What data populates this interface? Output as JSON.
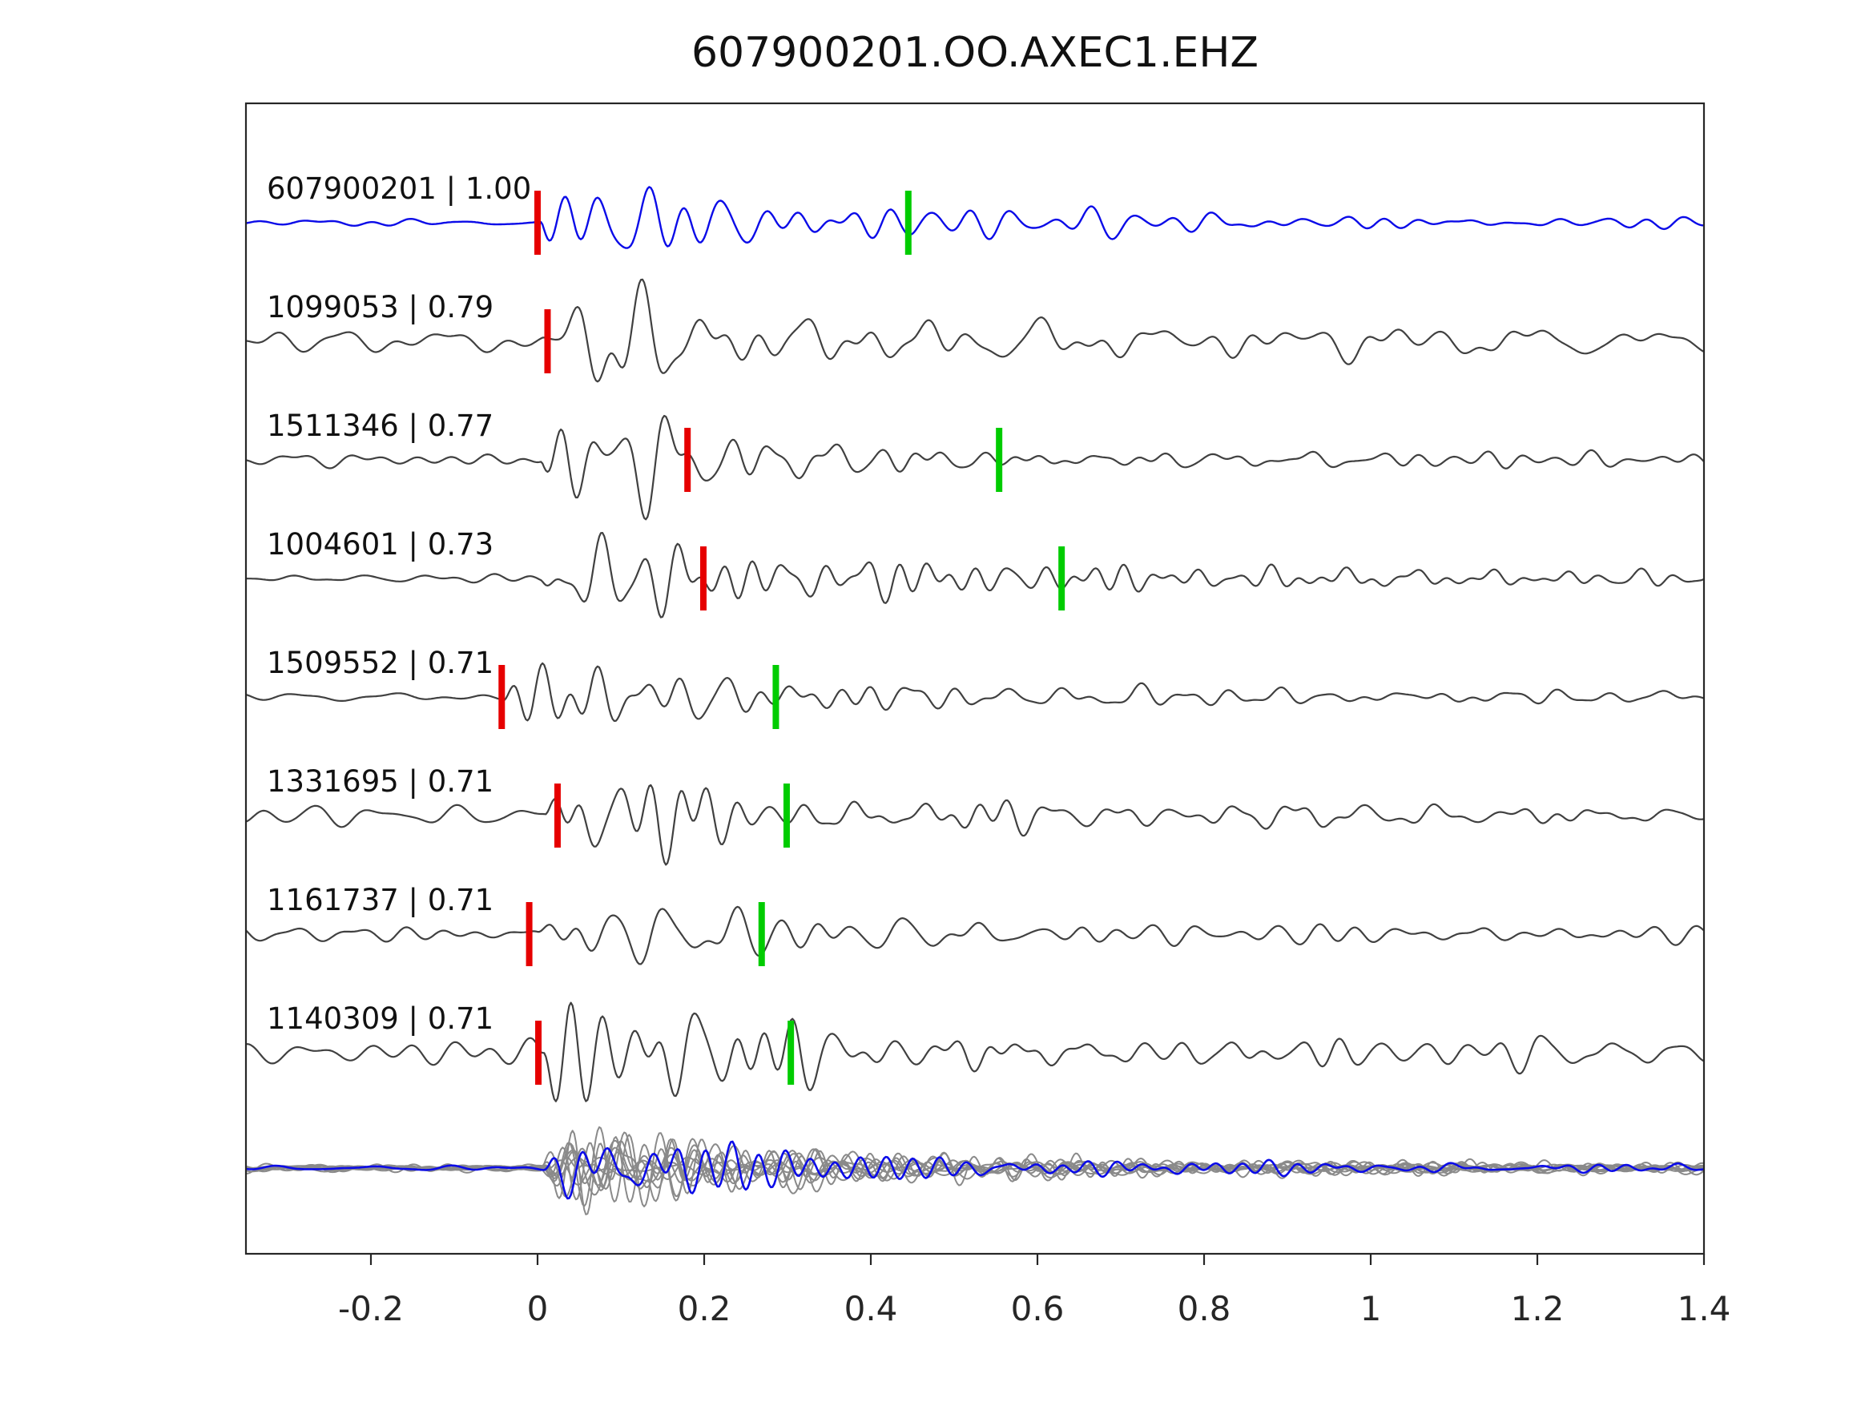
{
  "figure": {
    "title": "607900201.OO.AXEC1.EHZ"
  },
  "chart_data": {
    "type": "line",
    "title": "607900201.OO.AXEC1.EHZ",
    "xlabel": "",
    "ylabel": "",
    "xlim": [
      -0.35,
      1.4
    ],
    "xticks": [
      -0.2,
      0,
      0.2,
      0.4,
      0.6,
      0.8,
      1,
      1.2,
      1.4
    ],
    "xtick_labels": [
      "-0.2",
      "0",
      "0.2",
      "0.4",
      "0.6",
      "0.8",
      "1",
      "1.2",
      "1.4"
    ],
    "grid": false,
    "legend": false,
    "traces": [
      {
        "label": "607900201 | 1.00",
        "event_id": "607900201",
        "correlation": "1.00",
        "role": "template",
        "color_key": "template_blue",
        "red_pick_x": 0.0,
        "green_pick_x": 0.445,
        "onset": 0.005,
        "amp": 0.95,
        "noise": 0.09,
        "seed": 11
      },
      {
        "label": "1099053 | 0.79",
        "event_id": "1099053",
        "correlation": "0.79",
        "role": "match",
        "color_key": "match_gray",
        "red_pick_x": 0.012,
        "green_pick_x": null,
        "onset": 0.005,
        "amp": 1.05,
        "noise": 0.3,
        "seed": 22
      },
      {
        "label": "1511346 | 0.77",
        "event_id": "1511346",
        "correlation": "0.77",
        "role": "match",
        "color_key": "match_gray",
        "red_pick_x": 0.18,
        "green_pick_x": 0.554,
        "onset": 0.005,
        "amp": 1.0,
        "noise": 0.17,
        "seed": 33
      },
      {
        "label": "1004601 | 0.73",
        "event_id": "1004601",
        "correlation": "0.73",
        "role": "match",
        "color_key": "match_gray",
        "red_pick_x": 0.199,
        "green_pick_x": 0.629,
        "onset": 0.005,
        "amp": 0.95,
        "noise": 0.14,
        "seed": 44
      },
      {
        "label": "1509552 | 0.71",
        "event_id": "1509552",
        "correlation": "0.71",
        "role": "match",
        "color_key": "match_gray",
        "red_pick_x": -0.043,
        "green_pick_x": 0.286,
        "onset": -0.045,
        "amp": 1.0,
        "noise": 0.15,
        "seed": 55
      },
      {
        "label": "1331695 | 0.71",
        "event_id": "1331695",
        "correlation": "0.71",
        "role": "match",
        "color_key": "match_gray",
        "red_pick_x": 0.024,
        "green_pick_x": 0.299,
        "onset": 0.01,
        "amp": 1.05,
        "noise": 0.22,
        "seed": 66
      },
      {
        "label": "1161737 | 0.71",
        "event_id": "1161737",
        "correlation": "0.71",
        "role": "match",
        "color_key": "match_gray",
        "red_pick_x": -0.01,
        "green_pick_x": 0.269,
        "onset": 0.0,
        "amp": 0.9,
        "noise": 0.18,
        "seed": 77
      },
      {
        "label": "1140309 | 0.71",
        "event_id": "1140309",
        "correlation": "0.71",
        "role": "match",
        "color_key": "match_gray",
        "red_pick_x": 0.001,
        "green_pick_x": 0.304,
        "onset": 0.005,
        "amp": 1.2,
        "noise": 0.28,
        "seed": 88
      }
    ],
    "stack": {
      "n_members": 10,
      "onset": 0.005,
      "member_color_key": "stack_gray",
      "overlay_color_key": "template_blue",
      "overlay_amp": 0.8,
      "overlay_seed": 501
    },
    "colors": {
      "template_blue": "#0b0be8",
      "match_gray": "#404040",
      "stack_gray": "#8a8a8a",
      "pick_red": "#e60000",
      "pick_green": "#00cc00",
      "axis": "#262626",
      "text": "#111111"
    }
  }
}
